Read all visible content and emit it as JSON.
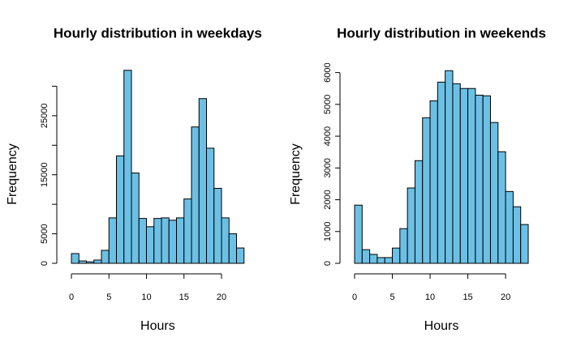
{
  "chart_data": [
    {
      "type": "histogram",
      "title": "Hourly distribution in weekdays",
      "xlabel": "Hours",
      "ylabel": "Frequency",
      "bins": [
        0,
        1,
        2,
        3,
        4,
        5,
        6,
        7,
        8,
        9,
        10,
        11,
        12,
        13,
        14,
        15,
        16,
        17,
        18,
        19,
        20,
        21,
        22,
        23
      ],
      "values": [
        1650,
        400,
        250,
        550,
        2200,
        7700,
        18200,
        32700,
        15300,
        7600,
        6200,
        7600,
        7700,
        7300,
        7700,
        10900,
        23100,
        27900,
        19500,
        12700,
        7700,
        5000,
        2600
      ],
      "color": "#6cc0e5",
      "xlim": [
        0,
        23
      ],
      "xticks": [
        0,
        5,
        10,
        15,
        20
      ],
      "ylim": [
        0,
        35000
      ],
      "yticks": [
        0,
        5000,
        15000,
        25000
      ],
      "yticks_unlabeled": [
        10000,
        20000,
        30000
      ]
    },
    {
      "type": "histogram",
      "title": "Hourly distribution in weekends",
      "xlabel": "Hours",
      "ylabel": "Frequency",
      "bins": [
        0,
        1,
        2,
        3,
        4,
        5,
        6,
        7,
        8,
        9,
        10,
        11,
        12,
        13,
        14,
        15,
        16,
        17,
        18,
        19,
        20,
        21,
        22,
        23
      ],
      "values": [
        1830,
        430,
        280,
        180,
        180,
        480,
        1090,
        2370,
        3230,
        4580,
        5110,
        5700,
        6060,
        5650,
        5500,
        5500,
        5290,
        5270,
        4430,
        3510,
        2260,
        1780,
        1220
      ],
      "color": "#6cc0e5",
      "xlim": [
        0,
        23
      ],
      "xticks": [
        0,
        5,
        10,
        15,
        20
      ],
      "ylim": [
        0,
        6500
      ],
      "yticks": [
        0,
        1000,
        2000,
        3000,
        4000,
        5000,
        6000
      ],
      "yticks_unlabeled": []
    }
  ]
}
